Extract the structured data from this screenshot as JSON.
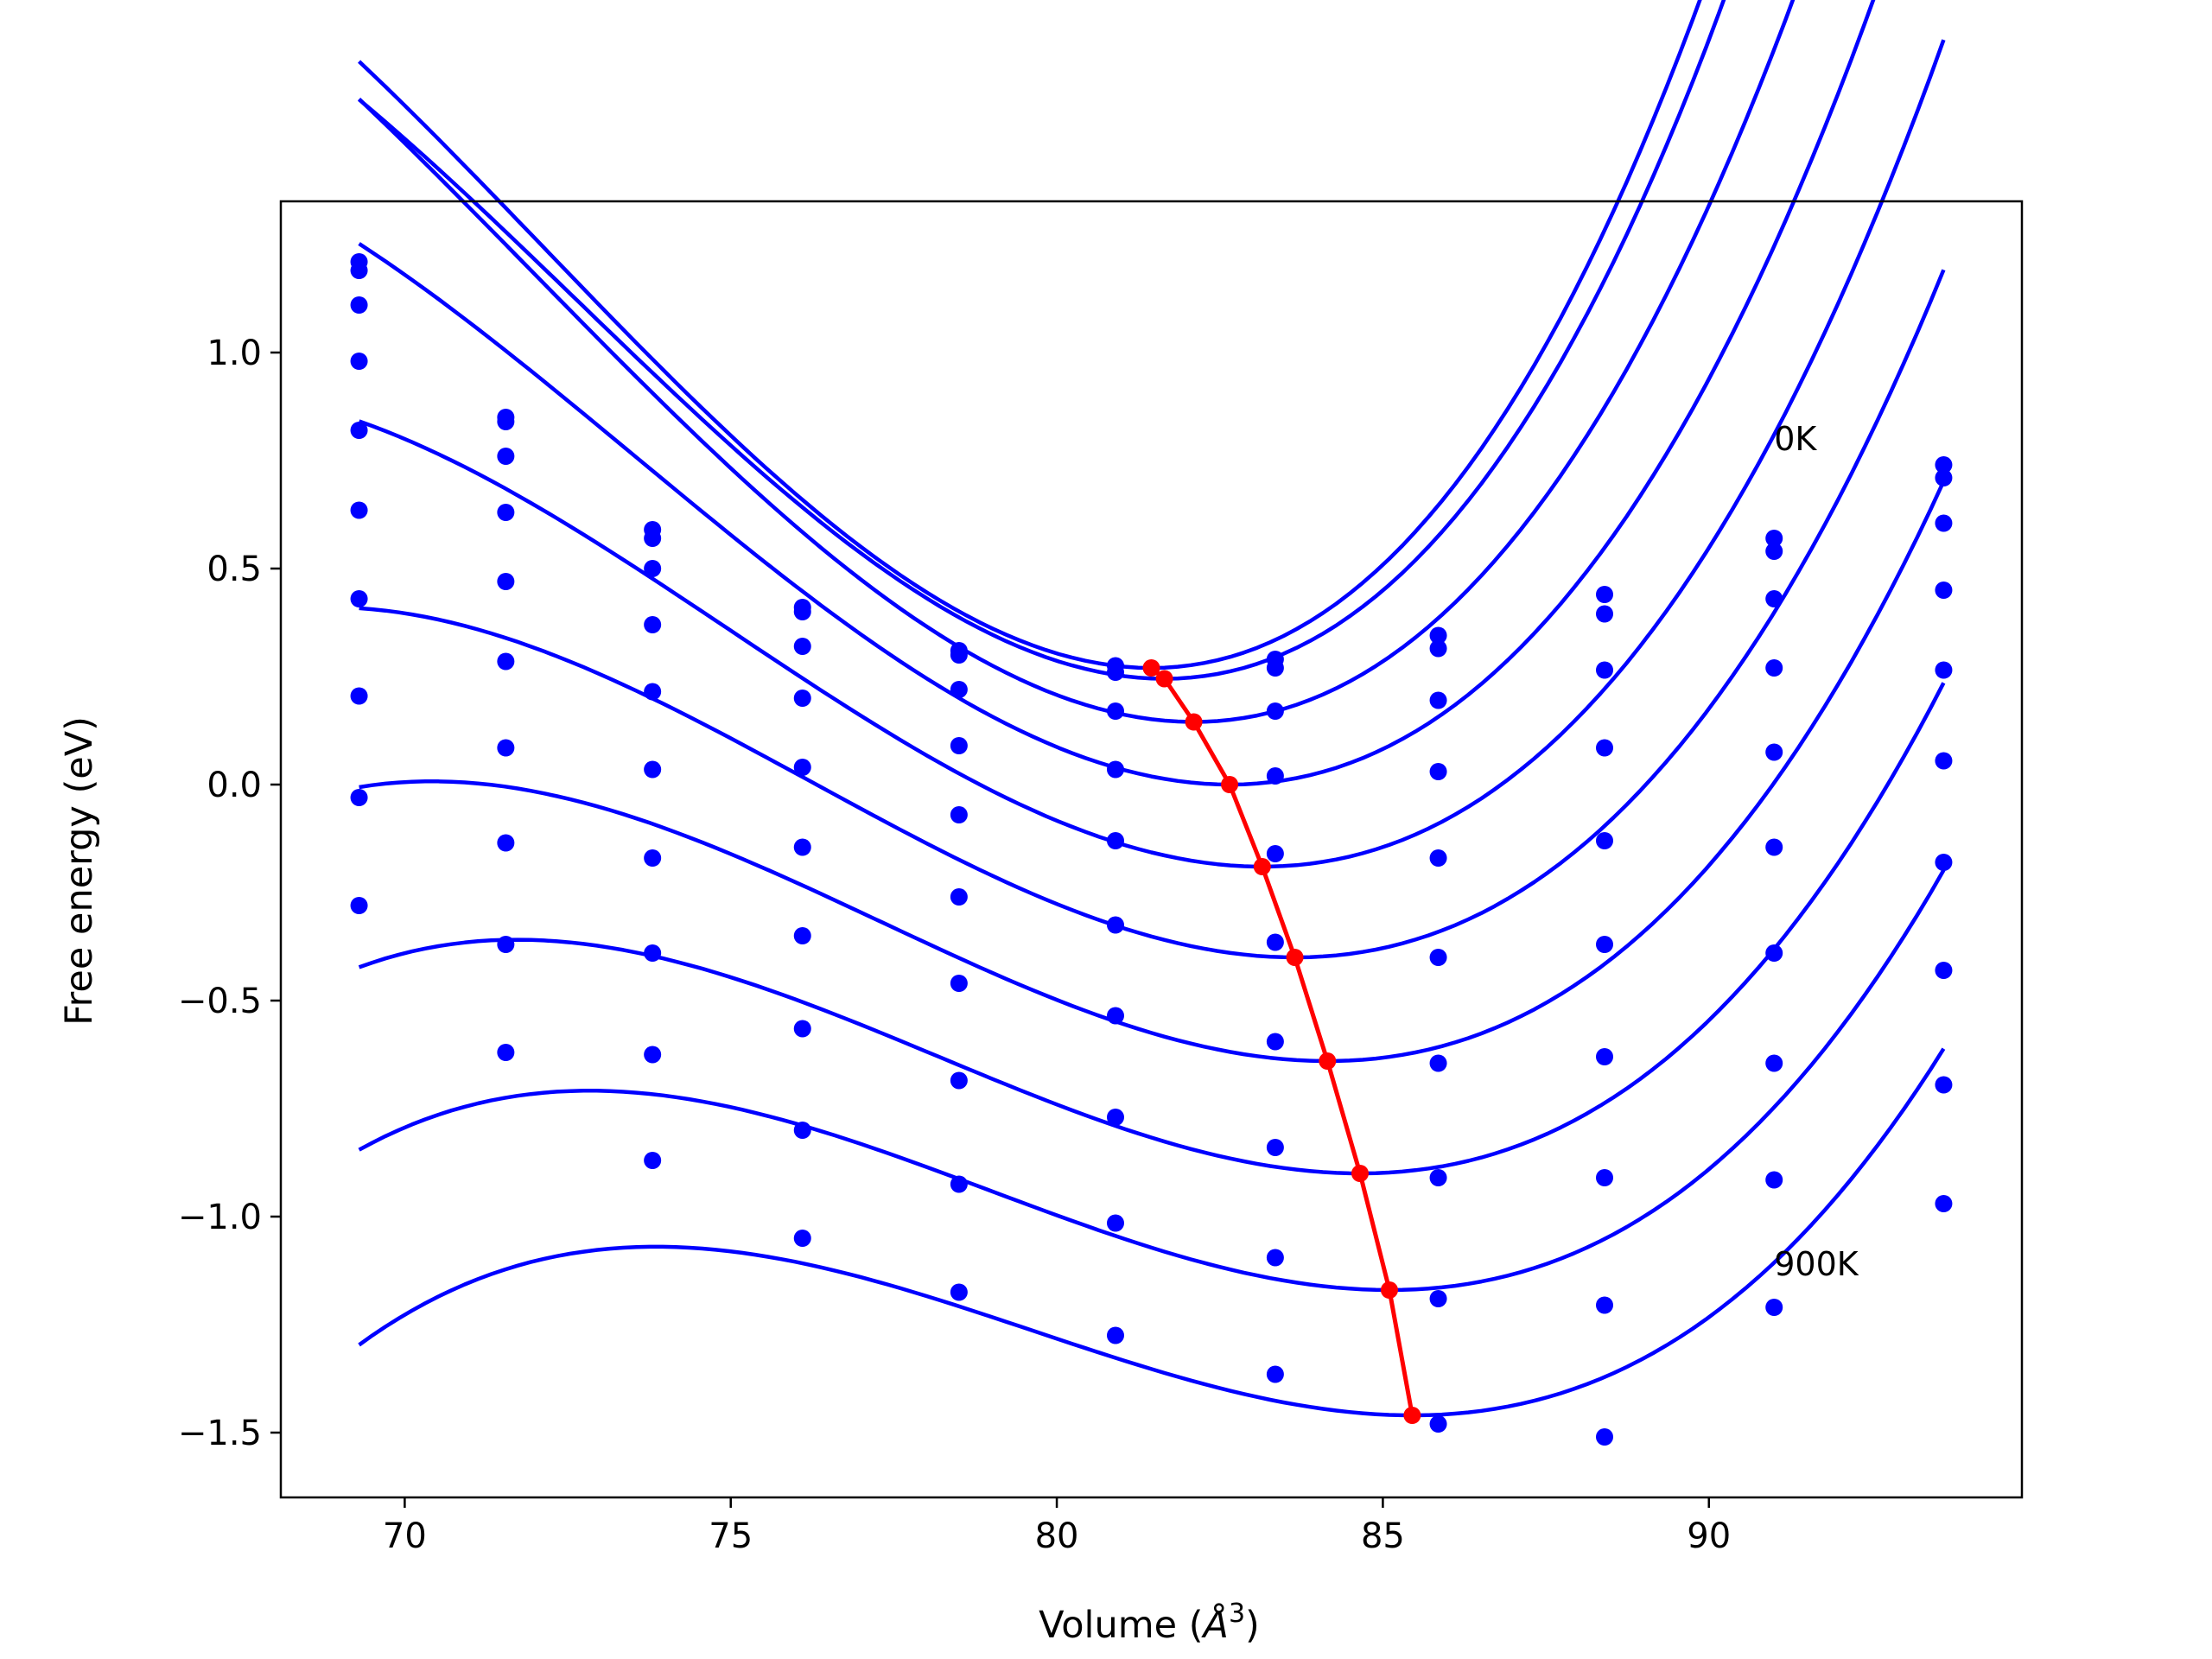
{
  "chart_data": {
    "type": "line",
    "title": "",
    "xlabel_main": "Volume (",
    "xlabel_unit": "Å",
    "xlabel_exp": "3",
    "xlabel_close": ")",
    "ylabel": "Free energy (eV)",
    "xlim": [
      68.1,
      94.8
    ],
    "ylim": [
      -1.65,
      1.35
    ],
    "x_ticks": [
      70,
      75,
      80,
      85,
      90
    ],
    "x_tick_labels": [
      "70",
      "75",
      "80",
      "85",
      "90"
    ],
    "y_ticks": [
      1.0,
      0.5,
      0.0,
      -0.5,
      -1.0,
      -1.5
    ],
    "y_tick_labels": [
      "1.0",
      "0.5",
      "0.0",
      "−0.5",
      "−1.0",
      "−1.5"
    ],
    "grid": false,
    "legend": "none",
    "colors": {
      "series": "#0000ff",
      "minima": "#ff0000",
      "axes": "#000000"
    },
    "annotations": [
      {
        "text": "0K",
        "x": 91.0,
        "y": 0.8
      },
      {
        "text": "900K",
        "x": 91.0,
        "y": -1.11
      }
    ],
    "fit_x_range": [
      69.3,
      93.6
    ],
    "volumes": [
      69.3,
      71.55,
      73.8,
      76.1,
      78.5,
      80.9,
      83.35,
      85.85,
      88.4,
      91.0,
      93.6
    ],
    "series": [
      {
        "points": [
          1.21,
          0.85,
          0.59,
          0.41,
          0.31,
          0.275,
          0.29,
          0.345,
          0.44,
          0.57,
          0.74
        ],
        "fit": {
          "vmin": 81.45,
          "emin": 0.27,
          "a": 0.0168,
          "b": 0.0006
        }
      },
      {
        "points": [
          1.19,
          0.84,
          0.57,
          0.4,
          0.3,
          0.26,
          0.27,
          0.315,
          0.395,
          0.54,
          0.71
        ],
        "fit": {
          "vmin": 81.65,
          "emin": 0.245,
          "a": 0.0162,
          "b": 0.0006
        }
      },
      {
        "points": [
          1.11,
          0.76,
          0.5,
          0.32,
          0.22,
          0.17,
          0.17,
          0.195,
          0.265,
          0.43,
          0.605
        ],
        "fit": {
          "vmin": 82.1,
          "emin": 0.145,
          "a": 0.0152,
          "b": 0.0005
        }
      },
      {
        "points": [
          0.98,
          0.63,
          0.37,
          0.2,
          0.09,
          0.035,
          0.02,
          0.03,
          0.085,
          0.27,
          0.45
        ],
        "fit": {
          "vmin": 82.65,
          "emin": 0.0,
          "a": 0.0137,
          "b": 0.0005
        }
      },
      {
        "points": [
          0.82,
          0.47,
          0.215,
          0.04,
          -0.07,
          -0.13,
          -0.16,
          -0.17,
          -0.13,
          0.075,
          0.265
        ],
        "fit": {
          "vmin": 83.15,
          "emin": -0.19,
          "a": 0.0123,
          "b": 0.0005
        }
      },
      {
        "points": [
          0.635,
          0.285,
          0.035,
          -0.145,
          -0.26,
          -0.325,
          -0.365,
          -0.4,
          -0.37,
          -0.145,
          0.055
        ],
        "fit": {
          "vmin": 83.65,
          "emin": -0.4,
          "a": 0.0111,
          "b": 0.0005
        }
      },
      {
        "points": [
          0.43,
          0.085,
          -0.17,
          -0.35,
          -0.46,
          -0.535,
          -0.595,
          -0.645,
          -0.63,
          -0.39,
          -0.18
        ],
        "fit": {
          "vmin": 84.15,
          "emin": -0.64,
          "a": 0.0103,
          "b": 0.0005
        }
      },
      {
        "points": [
          0.205,
          -0.135,
          -0.39,
          -0.565,
          -0.685,
          -0.77,
          -0.84,
          -0.91,
          -0.91,
          -0.645,
          -0.43
        ],
        "fit": {
          "vmin": 84.65,
          "emin": -0.9,
          "a": 0.0097,
          "b": 0.0005
        }
      },
      {
        "points": [
          -0.03,
          -0.37,
          -0.625,
          -0.8,
          -0.925,
          -1.015,
          -1.095,
          -1.19,
          -1.205,
          -0.915,
          -0.695
        ],
        "fit": {
          "vmin": 85.1,
          "emin": -1.17,
          "a": 0.0092,
          "b": 0.0005
        }
      },
      {
        "points": [
          -0.28,
          -0.62,
          -0.87,
          -1.05,
          -1.175,
          -1.275,
          -1.365,
          -1.48,
          -1.51,
          -1.21,
          -0.97
        ],
        "fit": {
          "vmin": 85.45,
          "emin": -1.46,
          "a": 0.0087,
          "b": 0.0005
        }
      }
    ],
    "minima_line": {
      "x": [
        81.45,
        81.65,
        82.1,
        82.65,
        83.15,
        83.65,
        84.15,
        84.65,
        85.1,
        85.45
      ],
      "y": [
        0.27,
        0.245,
        0.145,
        0.0,
        -0.19,
        -0.4,
        -0.64,
        -0.9,
        -1.17,
        -1.46
      ]
    }
  }
}
